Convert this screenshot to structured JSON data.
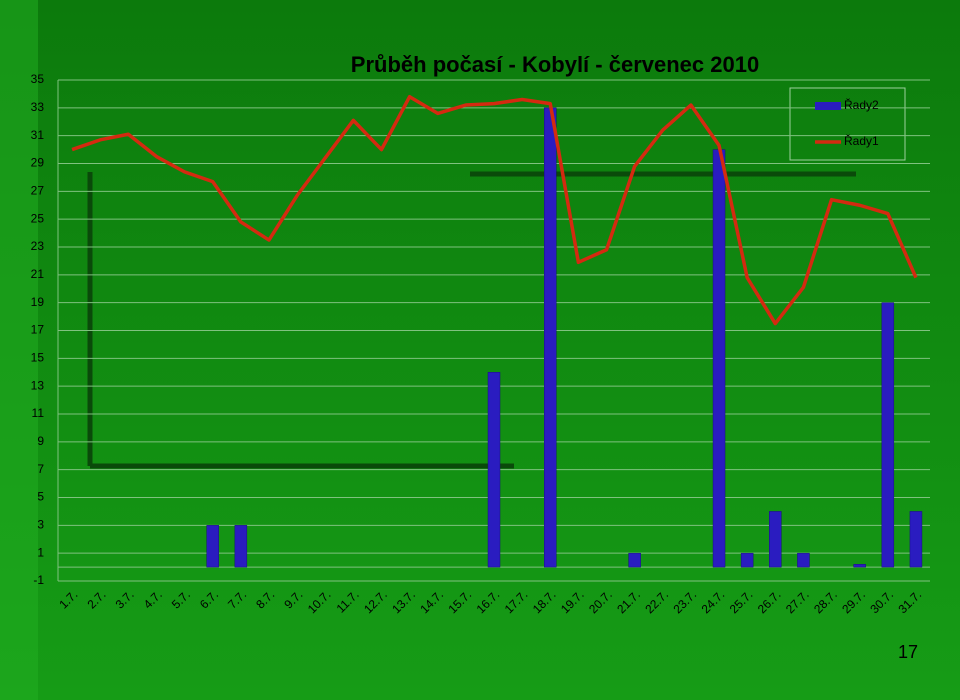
{
  "chart_data": {
    "type": "bar_line",
    "title": "Průběh počasí - Kobylí - červenec 2010",
    "categories": [
      "1.7.",
      "2.7.",
      "3.7.",
      "4.7.",
      "5.7.",
      "6.7.",
      "7.7.",
      "8.7.",
      "9.7.",
      "10.7.",
      "11.7.",
      "12.7.",
      "13.7.",
      "14.7.",
      "15.7.",
      "16.7.",
      "17.7.",
      "18.7.",
      "19.7.",
      "20.7.",
      "21.7.",
      "22.7.",
      "23.7.",
      "24.7.",
      "25.7.",
      "26.7.",
      "27.7.",
      "28.7.",
      "29.7.",
      "30.7.",
      "31.7."
    ],
    "series": [
      {
        "name": "Řady2",
        "type": "bar",
        "color": "#2a1cc0",
        "values": [
          0,
          0,
          0,
          0,
          0,
          3,
          3,
          0,
          0,
          0,
          0,
          0,
          0,
          0,
          0,
          14,
          0,
          33,
          0,
          0,
          1,
          0,
          0,
          30,
          1,
          4,
          1,
          0,
          0.2,
          19,
          4
        ]
      },
      {
        "name": "Řady1",
        "type": "line",
        "color": "#d42a10",
        "values": [
          30,
          30.7,
          31.1,
          29.5,
          28.4,
          27.7,
          24.8,
          23.5,
          26.7,
          29.4,
          32.1,
          30,
          33.8,
          32.6,
          33.2,
          33.3,
          33.6,
          33.3,
          21.9,
          22.8,
          28.8,
          31.4,
          33.2,
          30.3,
          20.8,
          17.5,
          20.1,
          26.4,
          26,
          25.4,
          20.8
        ]
      }
    ],
    "ylim": [
      -1,
      35
    ],
    "yticks": [
      -1,
      1,
      3,
      5,
      7,
      9,
      11,
      13,
      15,
      17,
      19,
      21,
      23,
      25,
      27,
      29,
      31,
      33,
      35
    ],
    "grid": true,
    "legend": "top-right"
  },
  "page_number": "17"
}
